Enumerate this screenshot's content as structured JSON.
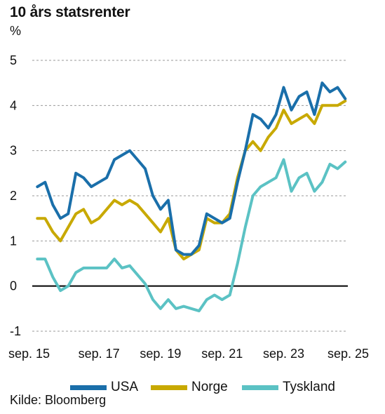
{
  "title": "10 års statsrenter",
  "unit": "%",
  "source": "Kilde: Bloomberg",
  "chart_data": {
    "type": "line",
    "title": "10 års statsrenter",
    "ylabel": "%",
    "xlabel": "",
    "ylim": [
      -1,
      5
    ],
    "yticks": [
      "-1",
      "0",
      "1",
      "2",
      "3",
      "4",
      "5"
    ],
    "x_tick_labels": [
      "sep. 15",
      "sep. 17",
      "sep. 19",
      "sep. 21",
      "sep. 23",
      "sep. 25"
    ],
    "x_tick_dates": [
      "2015-09",
      "2017-09",
      "2019-09",
      "2021-09",
      "2023-09",
      "2025-09"
    ],
    "x": [
      "2015-09",
      "2015-12",
      "2016-03",
      "2016-06",
      "2016-09",
      "2016-12",
      "2017-03",
      "2017-06",
      "2017-09",
      "2017-12",
      "2018-03",
      "2018-06",
      "2018-09",
      "2018-12",
      "2019-03",
      "2019-06",
      "2019-09",
      "2019-12",
      "2020-03",
      "2020-06",
      "2020-09",
      "2020-12",
      "2021-03",
      "2021-06",
      "2021-09",
      "2021-12",
      "2022-03",
      "2022-06",
      "2022-09",
      "2022-12",
      "2023-03",
      "2023-06",
      "2023-09",
      "2023-12",
      "2024-03",
      "2024-06",
      "2024-09",
      "2024-12",
      "2025-03",
      "2025-06",
      "2025-09"
    ],
    "grid": "horizontal dashed",
    "legend_position": "bottom",
    "series": [
      {
        "name": "USA",
        "color": "#1a6faa",
        "values": [
          2.2,
          2.3,
          1.8,
          1.5,
          1.6,
          2.5,
          2.4,
          2.2,
          2.3,
          2.4,
          2.8,
          2.9,
          3.0,
          2.8,
          2.6,
          2.0,
          1.7,
          1.9,
          0.8,
          0.7,
          0.7,
          0.9,
          1.6,
          1.5,
          1.4,
          1.5,
          2.3,
          3.0,
          3.8,
          3.7,
          3.5,
          3.8,
          4.4,
          3.9,
          4.2,
          4.3,
          3.8,
          4.5,
          4.3,
          4.4,
          4.15
        ]
      },
      {
        "name": "Norge",
        "color": "#c8a900",
        "values": [
          1.5,
          1.5,
          1.2,
          1.0,
          1.3,
          1.6,
          1.7,
          1.4,
          1.5,
          1.7,
          1.9,
          1.8,
          1.9,
          1.8,
          1.6,
          1.4,
          1.2,
          1.5,
          0.8,
          0.6,
          0.7,
          0.8,
          1.5,
          1.4,
          1.4,
          1.6,
          2.4,
          3.0,
          3.2,
          3.0,
          3.3,
          3.5,
          3.9,
          3.6,
          3.7,
          3.8,
          3.6,
          4.0,
          4.0,
          4.0,
          4.1
        ]
      },
      {
        "name": "Tyskland",
        "color": "#5bc2c4",
        "values": [
          0.6,
          0.6,
          0.2,
          -0.1,
          0.0,
          0.3,
          0.4,
          0.4,
          0.4,
          0.4,
          0.6,
          0.4,
          0.45,
          0.25,
          0.05,
          -0.3,
          -0.5,
          -0.3,
          -0.5,
          -0.45,
          -0.5,
          -0.55,
          -0.3,
          -0.2,
          -0.3,
          -0.2,
          0.5,
          1.3,
          2.0,
          2.2,
          2.3,
          2.4,
          2.8,
          2.1,
          2.4,
          2.5,
          2.1,
          2.3,
          2.7,
          2.6,
          2.75
        ]
      }
    ]
  }
}
